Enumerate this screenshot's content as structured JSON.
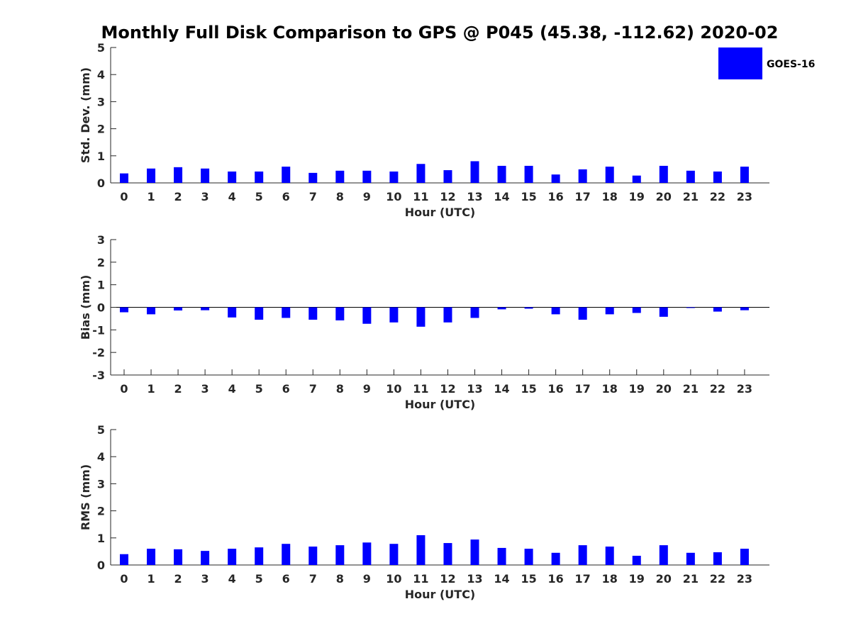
{
  "chart_data": {
    "title": "Monthly Full Disk Comparison to GPS @ P045 (45.38, -112.62) 2020-02",
    "series_color": "#0000ff",
    "legend": {
      "label": "GOES-16",
      "placement": "top-right"
    },
    "panels": [
      {
        "type": "bar",
        "ylabel": "Std. Dev. (mm)",
        "xlabel": "Hour (UTC)",
        "ylim": [
          0,
          5
        ],
        "yticks": [
          "0",
          "1",
          "2",
          "3",
          "4",
          "5"
        ],
        "categories": [
          "0",
          "1",
          "2",
          "3",
          "4",
          "5",
          "6",
          "7",
          "8",
          "9",
          "10",
          "11",
          "12",
          "13",
          "14",
          "15",
          "16",
          "17",
          "18",
          "19",
          "20",
          "21",
          "22",
          "23"
        ],
        "series": [
          {
            "name": "GOES-16",
            "values": [
              0.35,
              0.53,
              0.58,
              0.53,
              0.42,
              0.42,
              0.6,
              0.37,
              0.45,
              0.45,
              0.42,
              0.7,
              0.47,
              0.8,
              0.63,
              0.63,
              0.31,
              0.5,
              0.6,
              0.27,
              0.63,
              0.45,
              0.42,
              0.6
            ]
          }
        ]
      },
      {
        "type": "bar",
        "ylabel": "Bias (mm)",
        "xlabel": "Hour (UTC)",
        "ylim": [
          -3,
          3
        ],
        "yticks": [
          "-3",
          "-2",
          "-1",
          "0",
          "1",
          "2",
          "3"
        ],
        "categories": [
          "0",
          "1",
          "2",
          "3",
          "4",
          "5",
          "6",
          "7",
          "8",
          "9",
          "10",
          "11",
          "12",
          "13",
          "14",
          "15",
          "16",
          "17",
          "18",
          "19",
          "20",
          "21",
          "22",
          "23"
        ],
        "series": [
          {
            "name": "GOES-16",
            "values": [
              -0.22,
              -0.31,
              -0.14,
              -0.13,
              -0.45,
              -0.55,
              -0.47,
              -0.55,
              -0.58,
              -0.73,
              -0.67,
              -0.86,
              -0.67,
              -0.47,
              -0.09,
              -0.06,
              -0.31,
              -0.55,
              -0.31,
              -0.25,
              -0.42,
              -0.03,
              -0.19,
              -0.13
            ]
          }
        ]
      },
      {
        "type": "bar",
        "ylabel": "RMS (mm)",
        "xlabel": "Hour (UTC)",
        "ylim": [
          0,
          5
        ],
        "yticks": [
          "0",
          "1",
          "2",
          "3",
          "4",
          "5"
        ],
        "categories": [
          "0",
          "1",
          "2",
          "3",
          "4",
          "5",
          "6",
          "7",
          "8",
          "9",
          "10",
          "11",
          "12",
          "13",
          "14",
          "15",
          "16",
          "17",
          "18",
          "19",
          "20",
          "21",
          "22",
          "23"
        ],
        "series": [
          {
            "name": "GOES-16",
            "values": [
              0.4,
              0.6,
              0.58,
              0.52,
              0.6,
              0.65,
              0.78,
              0.68,
              0.73,
              0.83,
              0.78,
              1.1,
              0.81,
              0.94,
              0.63,
              0.6,
              0.45,
              0.73,
              0.68,
              0.34,
              0.73,
              0.45,
              0.47,
              0.6
            ]
          }
        ]
      }
    ]
  }
}
